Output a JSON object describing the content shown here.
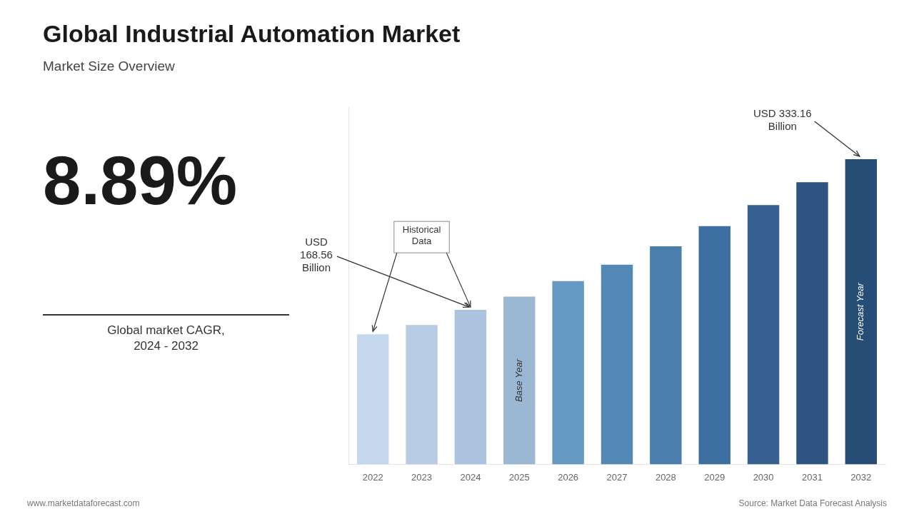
{
  "chart_data": {
    "type": "bar",
    "title": "Global Industrial Automation Market",
    "subtitle": "Market Size Overview",
    "cagr": "8.89%",
    "cagr_label": "Global market CAGR,\n2024 - 2032",
    "categories": [
      "2022",
      "2023",
      "2024",
      "2025",
      "2026",
      "2027",
      "2028",
      "2029",
      "2030",
      "2031",
      "2032"
    ],
    "values": [
      142,
      152,
      168.56,
      183,
      200,
      218,
      238,
      260,
      283,
      308,
      333.16
    ],
    "colors": [
      "#c5d8ee",
      "#b8cce4",
      "#adc4e0",
      "#9ab7d3",
      "#6699c2",
      "#5589b5",
      "#4a7fad",
      "#3d6fa0",
      "#356090",
      "#2e5582",
      "#264d75"
    ],
    "ylim": [
      0,
      390
    ],
    "yticks": [],
    "tick_labels": "x",
    "grid": false,
    "annotations": [
      {
        "text": "USD\n168.56\nBillion",
        "arrow_to": [
          "2024"
        ]
      },
      {
        "text": "Historical\nData",
        "arrow_to": [
          "2022",
          "2024"
        ]
      },
      {
        "text": "USD 333.16\nBillion",
        "arrow_to": [
          "2032"
        ]
      },
      {
        "text": "Base Year",
        "on": "2025"
      },
      {
        "text": "Forecast Year",
        "on": "2032"
      }
    ],
    "footer": [
      "www.marketdataforecast.com",
      "Source: Market Data Forecast Analysis"
    ]
  }
}
